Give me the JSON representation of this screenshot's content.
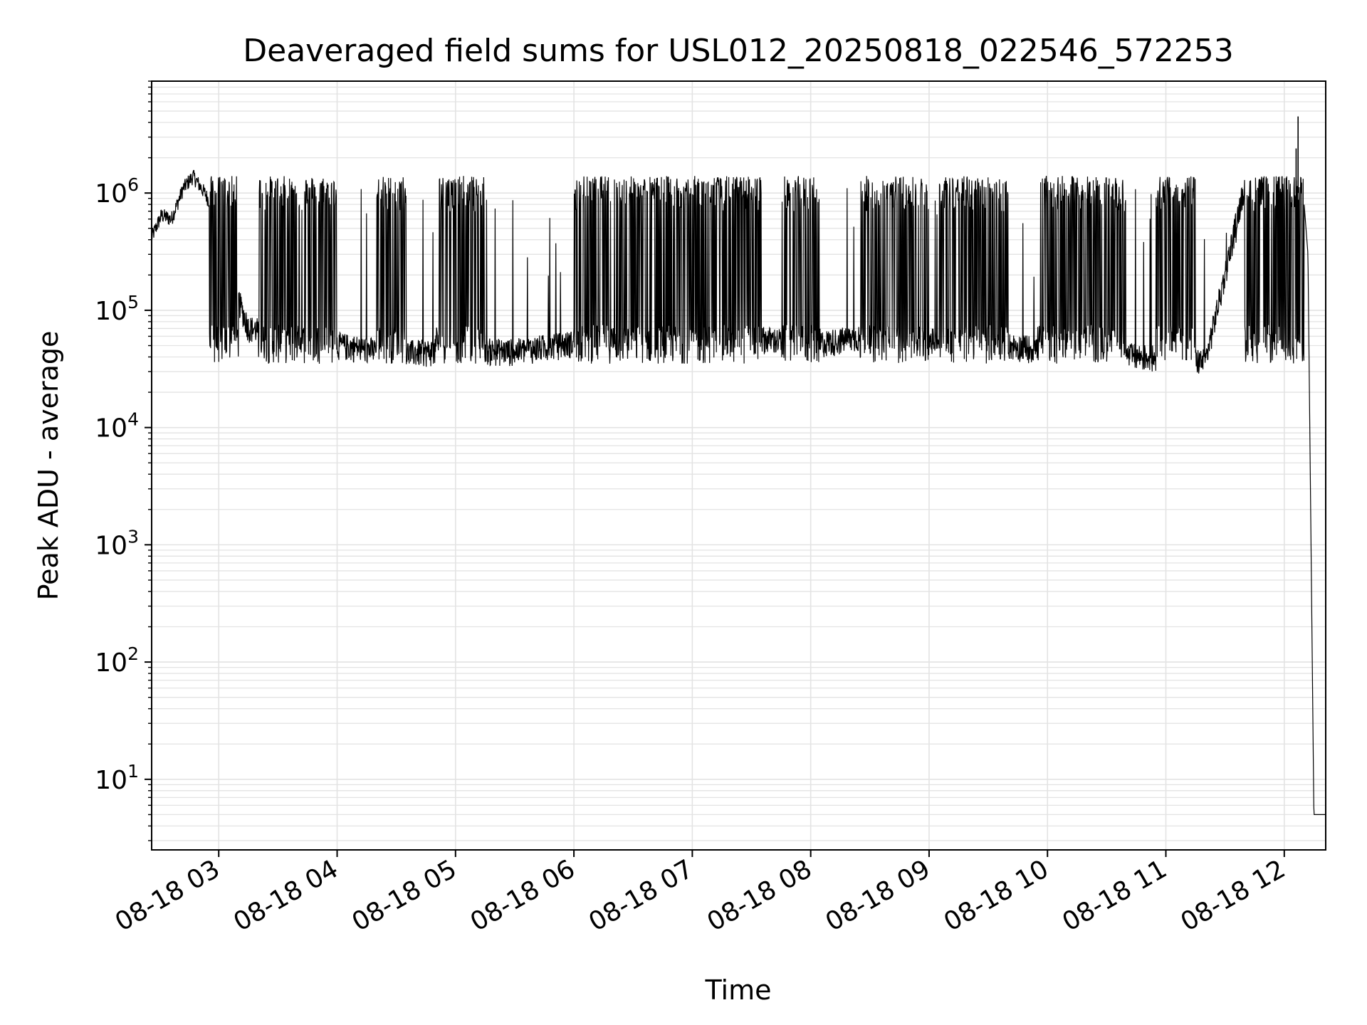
{
  "chart_data": {
    "type": "line",
    "title": "Deaveraged field sums for USL012_20250818_022546_572253",
    "xlabel": "Time",
    "ylabel": "Peak ADU - average",
    "yscale": "log",
    "ylim": [
      2.5,
      9000000
    ],
    "xlim": [
      "2025-08-18 02:26",
      "2025-08-18 12:21"
    ],
    "grid": true,
    "line_color": "#000000",
    "grid_color": "#e3e3e3",
    "xticks": [
      {
        "value": "2025-08-18 03:00",
        "label": "08-18 03"
      },
      {
        "value": "2025-08-18 04:00",
        "label": "08-18 04"
      },
      {
        "value": "2025-08-18 05:00",
        "label": "08-18 05"
      },
      {
        "value": "2025-08-18 06:00",
        "label": "08-18 06"
      },
      {
        "value": "2025-08-18 07:00",
        "label": "08-18 07"
      },
      {
        "value": "2025-08-18 08:00",
        "label": "08-18 08"
      },
      {
        "value": "2025-08-18 09:00",
        "label": "08-18 09"
      },
      {
        "value": "2025-08-18 10:00",
        "label": "08-18 10"
      },
      {
        "value": "2025-08-18 11:00",
        "label": "08-18 11"
      },
      {
        "value": "2025-08-18 12:00",
        "label": "08-18 12"
      }
    ],
    "yticks": [
      {
        "value": 10,
        "base": "10",
        "exp": "1"
      },
      {
        "value": 100,
        "base": "10",
        "exp": "2"
      },
      {
        "value": 1000,
        "base": "10",
        "exp": "3"
      },
      {
        "value": 10000,
        "base": "10",
        "exp": "4"
      },
      {
        "value": 100000,
        "base": "10",
        "exp": "5"
      },
      {
        "value": 1000000,
        "base": "10",
        "exp": "6"
      }
    ],
    "series": [
      {
        "points": [
          [
            "2025-08-18 02:26",
            420000
          ],
          [
            "2025-08-18 02:31",
            650000
          ],
          [
            "2025-08-18 02:36",
            600000
          ],
          [
            "2025-08-18 02:42",
            1100000
          ],
          [
            "2025-08-18 02:47",
            1400000
          ],
          [
            "2025-08-18 02:53",
            1000000
          ],
          [
            "2025-08-18 03:00",
            600000
          ],
          [
            "2025-08-18 03:05",
            300000
          ],
          [
            "2025-08-18 03:10",
            120000
          ],
          [
            "2025-08-18 03:15",
            70000
          ],
          [
            "2025-08-18 03:30",
            60000
          ],
          [
            "2025-08-18 04:00",
            50000
          ],
          [
            "2025-08-18 04:30",
            42000
          ],
          [
            "2025-08-18 05:00",
            45000
          ],
          [
            "2025-08-18 05:30",
            44000
          ],
          [
            "2025-08-18 06:00",
            52000
          ],
          [
            "2025-08-18 06:30",
            60000
          ],
          [
            "2025-08-18 07:00",
            62000
          ],
          [
            "2025-08-18 07:30",
            58000
          ],
          [
            "2025-08-18 08:00",
            50000
          ],
          [
            "2025-08-18 08:30",
            60000
          ],
          [
            "2025-08-18 09:00",
            55000
          ],
          [
            "2025-08-18 09:30",
            52000
          ],
          [
            "2025-08-18 10:00",
            45000
          ],
          [
            "2025-08-18 10:30",
            42000
          ],
          [
            "2025-08-18 11:00",
            38000
          ],
          [
            "2025-08-18 11:20",
            36000
          ],
          [
            "2025-08-18 11:30",
            200000
          ],
          [
            "2025-08-18 11:40",
            1200000
          ],
          [
            "2025-08-18 11:50",
            1500000
          ],
          [
            "2025-08-18 12:00",
            1300000
          ],
          [
            "2025-08-18 12:05",
            1800000
          ],
          [
            "2025-08-18 12:09",
            1400000
          ],
          [
            "2025-08-18 12:12",
            300000
          ],
          [
            "2025-08-18 12:15",
            5
          ],
          [
            "2025-08-18 12:21",
            5
          ]
        ],
        "spikes": [
          [
            "2025-08-18 12:07",
            4500000
          ],
          [
            "2025-08-18 12:06",
            2400000
          ]
        ],
        "high_activity_intervals": [
          [
            "2025-08-18 02:55",
            "2025-08-18 03:10"
          ],
          [
            "2025-08-18 03:20",
            "2025-08-18 04:00"
          ],
          [
            "2025-08-18 04:20",
            "2025-08-18 04:35"
          ],
          [
            "2025-08-18 04:50",
            "2025-08-18 05:15"
          ],
          [
            "2025-08-18 06:00",
            "2025-08-18 07:35"
          ],
          [
            "2025-08-18 07:45",
            "2025-08-18 08:05"
          ],
          [
            "2025-08-18 08:25",
            "2025-08-18 09:00"
          ],
          [
            "2025-08-18 09:05",
            "2025-08-18 09:40"
          ],
          [
            "2025-08-18 09:55",
            "2025-08-18 10:40"
          ],
          [
            "2025-08-18 10:55",
            "2025-08-18 11:15"
          ],
          [
            "2025-08-18 11:40",
            "2025-08-18 12:10"
          ]
        ]
      }
    ]
  }
}
